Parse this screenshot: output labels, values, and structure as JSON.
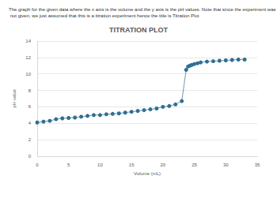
{
  "chart_data": {
    "type": "line",
    "title": "TITRATION PLOT",
    "subtitle": "The graph for the given data where the x axis is the volume and the y axis is the pH values. Note that since the experiment was not given, we just assumed that this is a titration experiment hence the title is Titration Plot",
    "x_label": "Volume (mL)",
    "y_label": "pH value",
    "x": [
      0,
      1,
      2,
      3,
      4,
      5,
      6,
      7,
      8,
      9,
      10,
      11,
      12,
      13,
      14,
      15,
      16,
      17,
      18,
      19,
      20,
      21,
      22,
      23,
      23.7,
      24,
      24.3,
      24.6,
      25,
      25.5,
      26,
      27,
      28,
      29,
      30,
      31,
      32,
      33
    ],
    "series": [
      {
        "name": "pH",
        "color": "#2f6f93",
        "values": [
          4.1,
          4.2,
          4.3,
          4.5,
          4.6,
          4.65,
          4.7,
          4.8,
          4.9,
          5.0,
          5.0,
          5.1,
          5.15,
          5.2,
          5.3,
          5.4,
          5.5,
          5.6,
          5.7,
          5.8,
          6.0,
          6.1,
          6.3,
          6.7,
          10.5,
          10.9,
          11.0,
          11.1,
          11.2,
          11.3,
          11.4,
          11.5,
          11.55,
          11.6,
          11.65,
          11.7,
          11.75,
          11.75
        ]
      }
    ],
    "marker": "circle",
    "xlim": [
      0,
      35
    ],
    "xticks": [
      0,
      5,
      10,
      15,
      20,
      25,
      30,
      35
    ],
    "ylim": [
      0,
      14
    ],
    "yticks": [
      0,
      2,
      4,
      6,
      8,
      10,
      12,
      14
    ],
    "grid": true
  }
}
